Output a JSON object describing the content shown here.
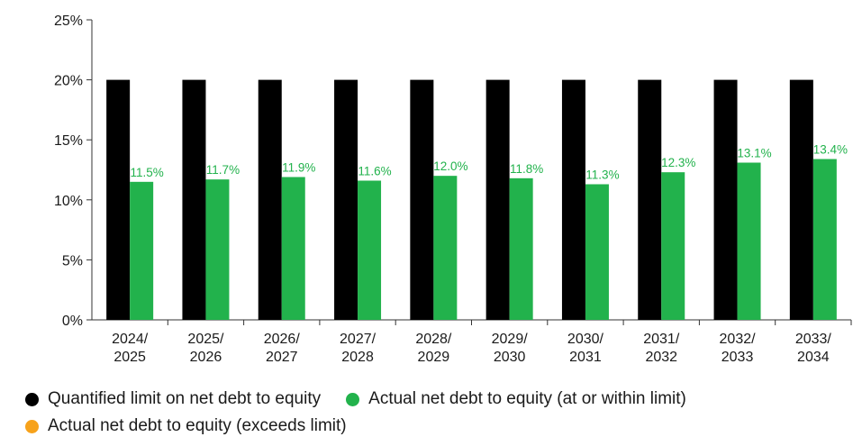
{
  "chart_data": {
    "type": "bar",
    "categories": [
      [
        "2024/",
        "2025"
      ],
      [
        "2025/",
        "2026"
      ],
      [
        "2026/",
        "2027"
      ],
      [
        "2027/",
        "2028"
      ],
      [
        "2028/",
        "2029"
      ],
      [
        "2029/",
        "2030"
      ],
      [
        "2030/",
        "2031"
      ],
      [
        "2031/",
        "2032"
      ],
      [
        "2032/",
        "2033"
      ],
      [
        "2033/",
        "2034"
      ]
    ],
    "series": [
      {
        "name": "Quantified limit on net debt to equity",
        "color": "#000000",
        "values": [
          20,
          20,
          20,
          20,
          20,
          20,
          20,
          20,
          20,
          20
        ]
      },
      {
        "name": "Actual net debt to equity (at or within limit)",
        "color": "#22b24c",
        "values": [
          11.5,
          11.7,
          11.9,
          11.6,
          12.0,
          11.8,
          11.3,
          12.3,
          13.1,
          13.4
        ],
        "data_labels": [
          "11.5%",
          "11.7%",
          "11.9%",
          "11.6%",
          "12.0%",
          "11.8%",
          "11.3%",
          "12.3%",
          "13.1%",
          "13.4%"
        ]
      }
    ],
    "extra_legend": {
      "name": "Actual net debt to equity (exceeds limit)",
      "color": "#f7a21b"
    },
    "y_ticks": [
      "0%",
      "5%",
      "10%",
      "15%",
      "20%",
      "25%"
    ],
    "ylim": [
      0,
      25
    ],
    "y_step": 5,
    "grid": false,
    "legend_position": "bottom-left"
  },
  "legend": {
    "limit": "Quantified limit on net debt to equity",
    "within": "Actual net debt to equity (at or within limit)",
    "exceeds": "Actual net debt to equity (exceeds limit)"
  }
}
